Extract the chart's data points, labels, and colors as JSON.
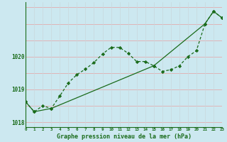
{
  "xlabel": "Graphe pression niveau de la mer (hPa)",
  "bg_color": "#cce8f0",
  "line_color": "#1a6b1a",
  "grid_color_h": "#e8a0a0",
  "grid_color_v": "#c8d8dc",
  "hours": [
    0,
    1,
    2,
    3,
    4,
    5,
    6,
    7,
    8,
    9,
    10,
    11,
    12,
    13,
    14,
    15,
    16,
    17,
    18,
    19,
    20,
    21,
    22,
    23
  ],
  "y_dotted": [
    1018.62,
    1018.32,
    1018.5,
    1018.42,
    1018.8,
    1019.2,
    1019.45,
    1019.62,
    1019.82,
    1020.08,
    1020.28,
    1020.28,
    1020.1,
    1019.85,
    1019.85,
    1019.72,
    1019.55,
    1019.6,
    1019.72,
    1020.0,
    1020.18,
    1021.0,
    1021.38,
    1021.18
  ],
  "x_solid": [
    0,
    1,
    3,
    15,
    21,
    22,
    23
  ],
  "y_solid": [
    1018.62,
    1018.32,
    1018.42,
    1019.72,
    1021.0,
    1021.38,
    1021.18
  ],
  "ylim": [
    1017.85,
    1021.65
  ],
  "xlim": [
    0,
    23
  ],
  "yticks": [
    1018,
    1019,
    1020
  ],
  "xticks": [
    0,
    1,
    2,
    3,
    4,
    5,
    6,
    7,
    8,
    9,
    10,
    11,
    12,
    13,
    14,
    15,
    16,
    17,
    18,
    19,
    20,
    21,
    22,
    23
  ]
}
